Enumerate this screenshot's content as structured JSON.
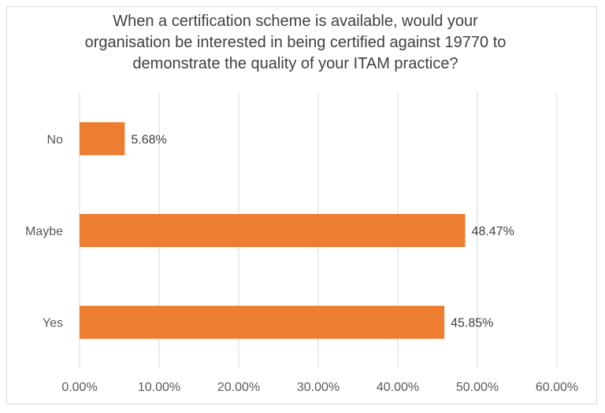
{
  "chart_data": {
    "type": "bar",
    "orientation": "horizontal",
    "title_lines": [
      "When a certification scheme is available, would your",
      "organisation be interested in being certified against 19770 to",
      "demonstrate the quality of your ITAM practice?"
    ],
    "categories": [
      "No",
      "Maybe",
      "Yes"
    ],
    "values": [
      5.68,
      48.47,
      45.85
    ],
    "data_labels": [
      "5.68%",
      "48.47%",
      "45.85%"
    ],
    "x_ticks": [
      "0.00%",
      "10.00%",
      "20.00%",
      "30.00%",
      "40.00%",
      "50.00%",
      "60.00%"
    ],
    "xlim": [
      0,
      60
    ],
    "xlabel": "",
    "ylabel": "",
    "grid": true,
    "legend": "none",
    "bar_color": "#ED7D31",
    "grid_color": "#D9D9D9"
  }
}
